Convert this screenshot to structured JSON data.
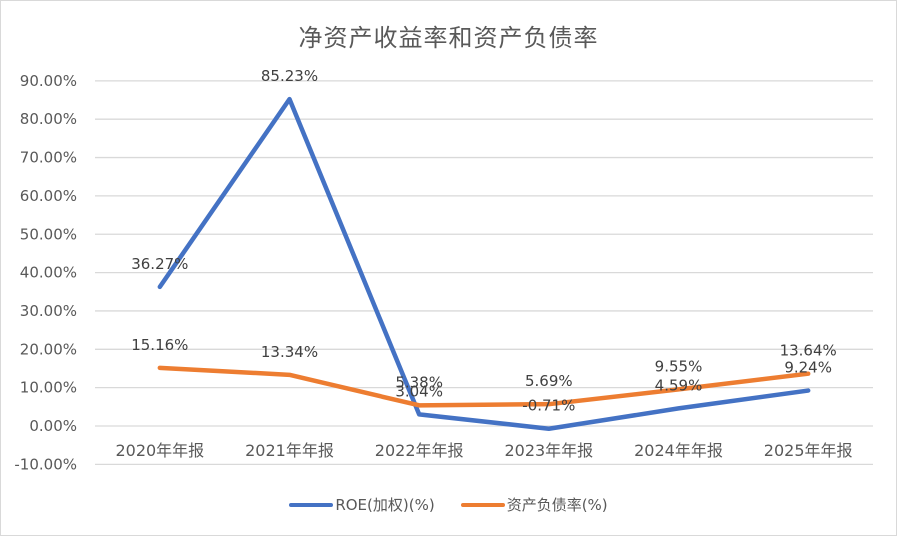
{
  "chart_data": {
    "type": "line",
    "title": "净资产收益率和资产负债率",
    "xlabel": "",
    "ylabel": "",
    "categories": [
      "2020年年报",
      "2021年年报",
      "2022年年报",
      "2023年年报",
      "2024年年报",
      "2025年年报"
    ],
    "series": [
      {
        "name": "ROE(加权)(%)",
        "color": "#4472C4",
        "values": [
          36.27,
          85.23,
          3.04,
          -0.71,
          4.59,
          9.24
        ],
        "labels": [
          "36.27%",
          "85.23%",
          "3.04%",
          "-0.71%",
          "4.59%",
          "9.24%"
        ]
      },
      {
        "name": "资产负债率(%)",
        "color": "#ED7D31",
        "values": [
          15.16,
          13.34,
          5.38,
          5.69,
          9.55,
          13.64
        ],
        "labels": [
          "15.16%",
          "13.34%",
          "5.38%",
          "5.69%",
          "9.55%",
          "13.64%"
        ]
      }
    ],
    "ylim": [
      -10,
      90
    ],
    "yticks": [
      "90.00%",
      "80.00%",
      "70.00%",
      "60.00%",
      "50.00%",
      "40.00%",
      "30.00%",
      "20.00%",
      "10.00%",
      "0.00%",
      "-10.00%"
    ],
    "grid": true,
    "legend_position": "bottom"
  }
}
